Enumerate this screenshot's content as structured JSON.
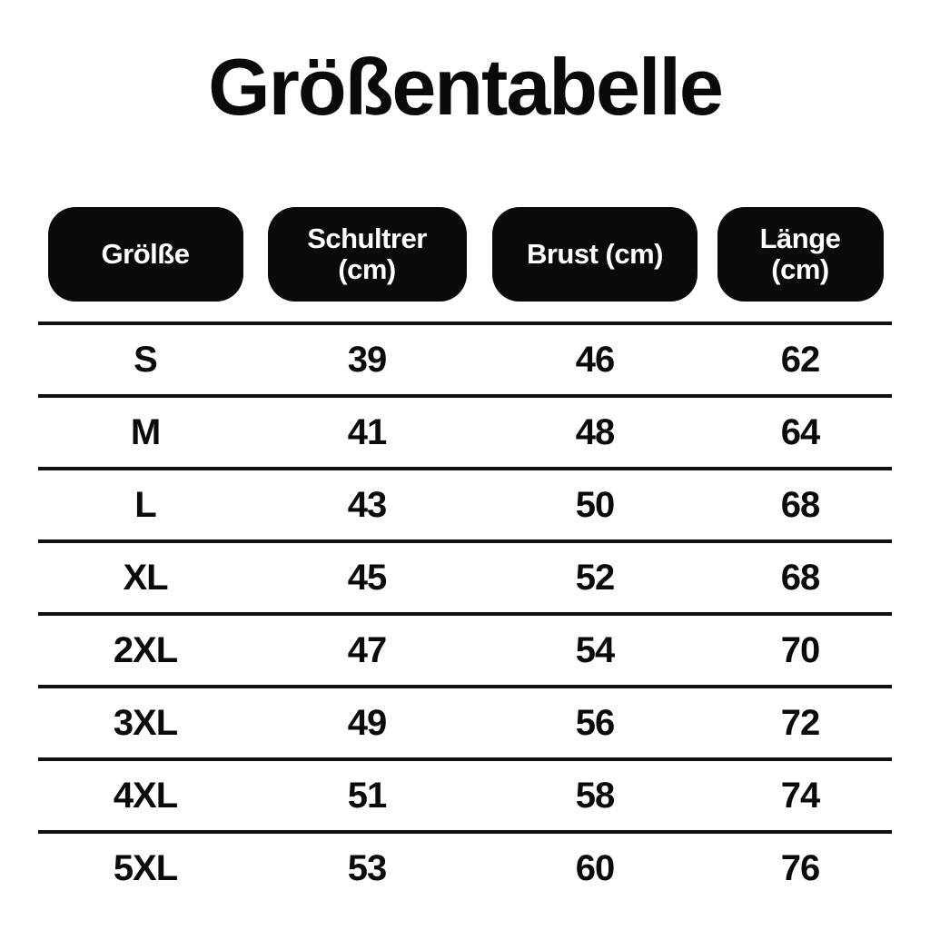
{
  "title": "Größentabelle",
  "table": {
    "headers": [
      {
        "label": "Grölße"
      },
      {
        "label": "Schultrer\n(cm)"
      },
      {
        "label": "Brust (cm)"
      },
      {
        "label": "Länge\n(cm)"
      }
    ],
    "rows": [
      {
        "cells": [
          "S",
          "39",
          "46",
          "62"
        ]
      },
      {
        "cells": [
          "M",
          "41",
          "48",
          "64"
        ]
      },
      {
        "cells": [
          "L",
          "43",
          "50",
          "68"
        ]
      },
      {
        "cells": [
          "XL",
          "45",
          "52",
          "68"
        ]
      },
      {
        "cells": [
          "2XL",
          "47",
          "54",
          "70"
        ]
      },
      {
        "cells": [
          "3XL",
          "49",
          "56",
          "72"
        ]
      },
      {
        "cells": [
          "4XL",
          "51",
          "58",
          "74"
        ]
      },
      {
        "cells": [
          "5XL",
          "53",
          "60",
          "76"
        ]
      }
    ]
  },
  "colors": {
    "background": "#ffffff",
    "pill_background": "#0a0a0a",
    "pill_text": "#ffffff",
    "body_text": "#0a0a0a",
    "rule_line": "#0f0f0f"
  }
}
